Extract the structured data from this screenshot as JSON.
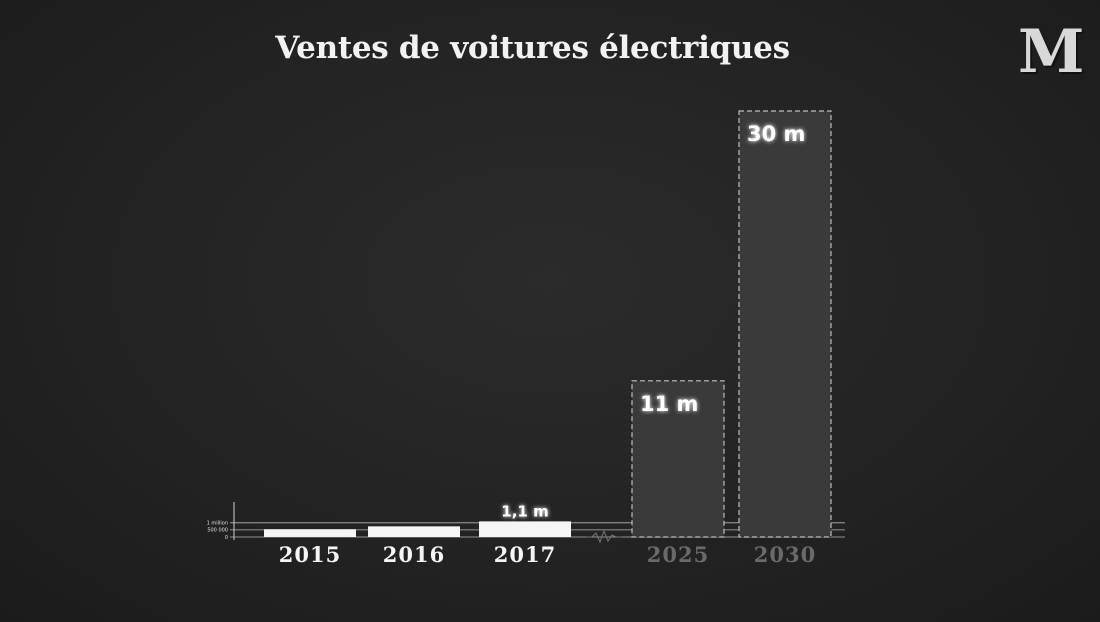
{
  "header": {
    "title": "Ventes de voitures électriques",
    "logo_text": "M"
  },
  "chart_data": {
    "type": "bar",
    "title": "Ventes de voitures électriques",
    "categories": [
      "2015",
      "2016",
      "2017",
      "2025",
      "2030"
    ],
    "values": [
      0.55,
      0.75,
      1.1,
      11,
      30
    ],
    "value_unit": "millions",
    "projected": [
      false,
      false,
      false,
      true,
      true
    ],
    "data_labels": [
      "",
      "",
      "1,1 m",
      "11 m",
      "30 m"
    ],
    "y_ticks": [
      {
        "value": 0,
        "label": "0"
      },
      {
        "value": 0.5,
        "label": "500 000"
      },
      {
        "value": 1,
        "label": "1 million"
      }
    ],
    "axis_break": true,
    "xlabel": "",
    "ylabel": "",
    "colors": {
      "actual": "#f5f5f5",
      "projected_fill": "#3a3a3a",
      "projected_border": "#bdbdbd",
      "projected_tick": "#6a6a6a",
      "actual_tick": "#f5f5f5",
      "axis": "#d0d0d0"
    }
  }
}
